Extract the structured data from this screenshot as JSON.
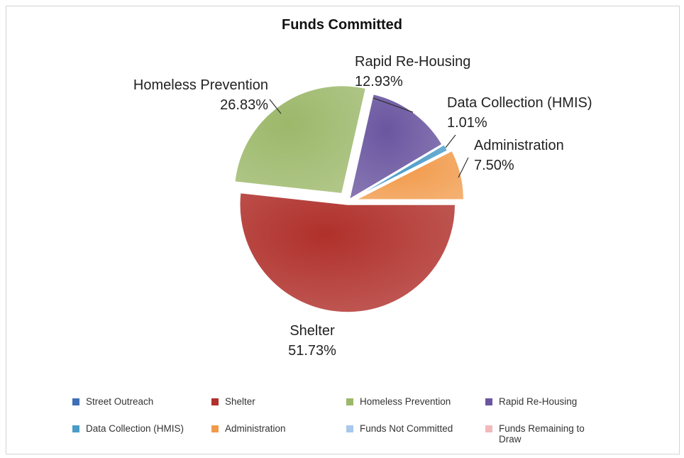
{
  "chart_data": {
    "type": "pie",
    "title": "Funds Committed",
    "slices": [
      {
        "name": "Street Outreach",
        "value": 0,
        "label": "",
        "color": "#3f6fb5"
      },
      {
        "name": "Shelter",
        "value": 51.73,
        "label": "51.73%",
        "color": "#b0302b"
      },
      {
        "name": "Homeless Prevention",
        "value": 26.83,
        "label": "26.83%",
        "color": "#9cb86a"
      },
      {
        "name": "Rapid Re-Housing",
        "value": 12.93,
        "label": "12.93%",
        "color": "#6a56a0"
      },
      {
        "name": "Data Collection (HMIS)",
        "value": 1.01,
        "label": "1.01%",
        "color": "#4a9cc8"
      },
      {
        "name": "Administration",
        "value": 7.5,
        "label": "7.50%",
        "color": "#f19a4a"
      },
      {
        "name": "Funds Not Committed",
        "value": 0,
        "label": "",
        "color": "#a8c8ec"
      },
      {
        "name": "Funds Remaining to Draw",
        "value": 0,
        "label": "",
        "color": "#f4b8bc"
      }
    ],
    "legend": {
      "position": "bottom",
      "entries": [
        "Street Outreach",
        "Shelter",
        "Homeless Prevention",
        "Rapid Re-Housing",
        "Data Collection (HMIS)",
        "Administration",
        "Funds Not Committed",
        "Funds Remaining to Draw"
      ],
      "display_text": [
        "Street Outreach",
        "Shelter",
        "Homeless Prevention",
        "Rapid Re-Housing",
        "Data Collection (HMIS)",
        "Administration",
        "Funds Not Committed",
        "Funds Remaining to\nDraw"
      ]
    }
  }
}
